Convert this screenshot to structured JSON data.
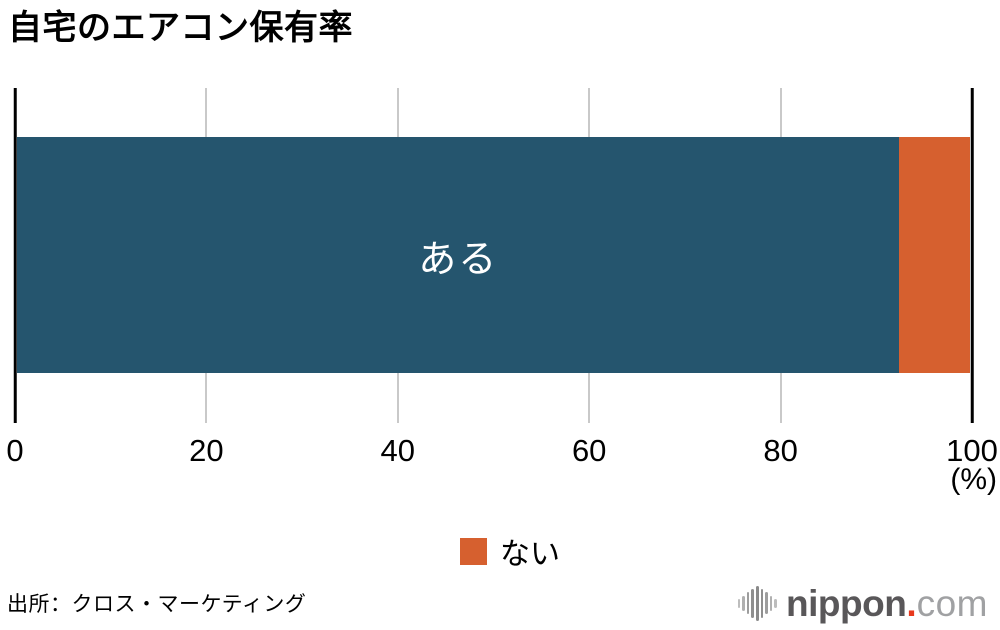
{
  "title": "自宅のエアコン保有率",
  "chart_data": {
    "type": "bar",
    "orientation": "horizontal",
    "stacked": true,
    "title": "自宅のエアコン保有率",
    "categories": [
      "自宅のエアコン保有率"
    ],
    "series": [
      {
        "name": "ある",
        "value": 92.6,
        "color": "#25556e",
        "label_position": "inside-center",
        "label_color": "#ffffff"
      },
      {
        "name": "ない",
        "value": 7.4,
        "color": "#d6602f",
        "label_position": "legend"
      }
    ],
    "xlim": [
      0,
      100
    ],
    "tick_values": [
      0,
      20,
      40,
      60,
      80,
      100
    ],
    "ticks": [
      "0",
      "20",
      "40",
      "60",
      "80",
      "100"
    ],
    "xlabel": "(%)",
    "grid": true,
    "legend_position": "bottom-center"
  },
  "bar": {
    "aru_label": "ある"
  },
  "legend": {
    "nai_label": "ない"
  },
  "axis": {
    "percent_label": "(%)"
  },
  "source": "出所：クロス・マーケティング",
  "logo": {
    "name": "nippon.com",
    "part1": "nippon",
    "dot": ".",
    "part2": "com",
    "dot_color": "#e8391d"
  }
}
